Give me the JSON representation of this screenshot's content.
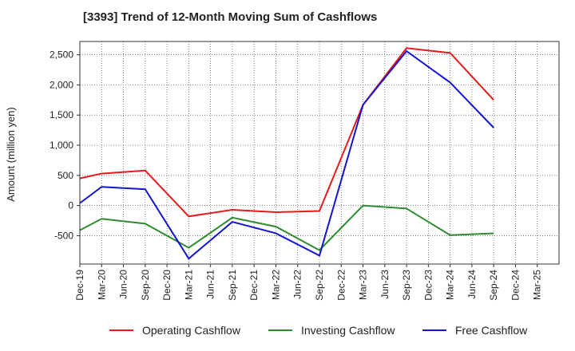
{
  "chart_data": {
    "type": "line",
    "title": "[3393]  Trend of 12-Month Moving Sum of Cashflows",
    "ylabel": "Amount (million yen)",
    "xlabel": "",
    "categories": [
      "Dec-19",
      "Mar-20",
      "Jun-20",
      "Sep-20",
      "Dec-20",
      "Mar-21",
      "Jun-21",
      "Sep-21",
      "Dec-21",
      "Mar-22",
      "Jun-22",
      "Sep-22",
      "Dec-22",
      "Mar-23",
      "Jun-23",
      "Sep-23",
      "Dec-23",
      "Mar-24",
      "Jun-24",
      "Sep-24",
      "Dec-24",
      "Mar-25"
    ],
    "yticks": [
      -500,
      0,
      500,
      1000,
      1500,
      2000,
      2500
    ],
    "ytick_labels": [
      "-500",
      "0",
      "500",
      "1,000",
      "1,500",
      "2,000",
      "2,500"
    ],
    "ylim": [
      -970,
      2720
    ],
    "grid": true,
    "legend_position": "bottom",
    "series": [
      {
        "name": "Operating Cashflow",
        "color": "#e41a1c",
        "x": [
          "Dec-19",
          "Mar-20",
          "Sep-20",
          "Mar-21",
          "Sep-21",
          "Mar-22",
          "Sep-22",
          "Mar-23",
          "Sep-23",
          "Mar-24",
          "Sep-24"
        ],
        "values": [
          450,
          530,
          580,
          -180,
          -70,
          -110,
          -90,
          1670,
          2610,
          2530,
          1750
        ]
      },
      {
        "name": "Investing Cashflow",
        "color": "#2e8b2e",
        "x": [
          "Dec-19",
          "Mar-20",
          "Sep-20",
          "Mar-21",
          "Sep-21",
          "Mar-22",
          "Sep-22",
          "Mar-23",
          "Sep-23",
          "Mar-24",
          "Sep-24"
        ],
        "values": [
          -410,
          -220,
          -300,
          -700,
          -200,
          -350,
          -740,
          0,
          -50,
          -490,
          -460
        ]
      },
      {
        "name": "Free Cashflow",
        "color": "#1515d0",
        "x": [
          "Dec-19",
          "Mar-20",
          "Sep-20",
          "Mar-21",
          "Sep-21",
          "Mar-22",
          "Sep-22",
          "Mar-23",
          "Sep-23",
          "Mar-24",
          "Sep-24"
        ],
        "values": [
          40,
          310,
          270,
          -880,
          -270,
          -460,
          -830,
          1670,
          2560,
          2040,
          1290
        ]
      }
    ]
  }
}
